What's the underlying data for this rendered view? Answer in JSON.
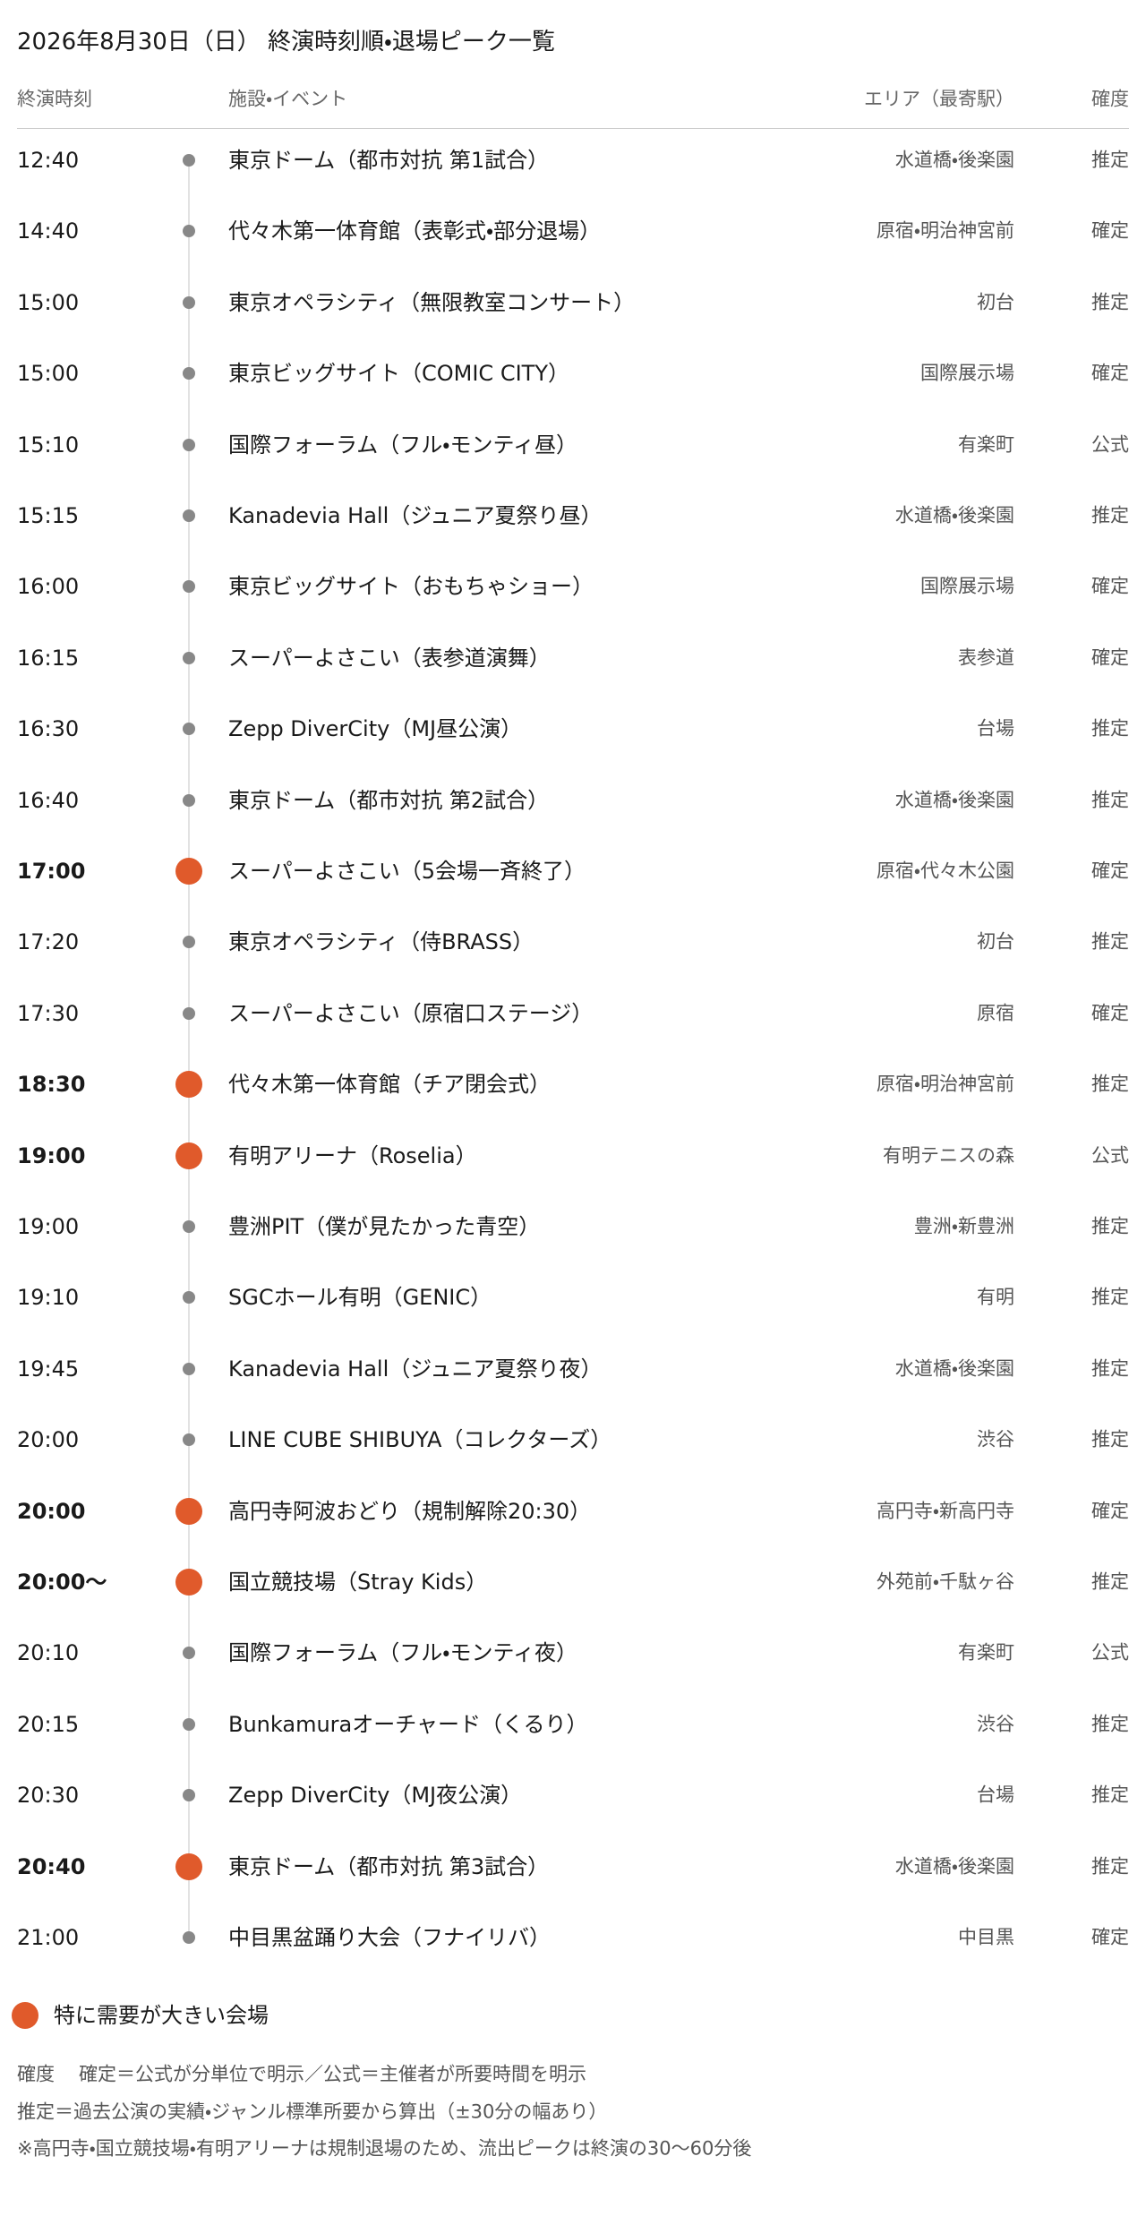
{
  "header": {
    "title": "2026年8月30日（日） 終演時刻順・退場ピーク一覧"
  },
  "columns": {
    "time": "終演時刻",
    "event": "施設・イベント",
    "area": "エリア（最寄駅）",
    "certainty": "確度"
  },
  "rows": [
    {
      "time": "12:40",
      "event": "東京ドーム（都市対抗 第1試合）",
      "area": "水道橋・後楽園",
      "certainty": "推定",
      "major": false
    },
    {
      "time": "14:40",
      "event": "代々木第一体育館（表彰式・部分退場）",
      "area": "原宿・明治神宮前",
      "certainty": "確定",
      "major": false
    },
    {
      "time": "15:00",
      "event": "東京オペラシティ（無限教室コンサート）",
      "area": "初台",
      "certainty": "推定",
      "major": false
    },
    {
      "time": "15:00",
      "event": "東京ビッグサイト（COMIC CITY）",
      "area": "国際展示場",
      "certainty": "確定",
      "major": false
    },
    {
      "time": "15:10",
      "event": "国際フォーラム（フル・モンティ昼）",
      "area": "有楽町",
      "certainty": "公式",
      "major": false
    },
    {
      "time": "15:15",
      "event": "Kanadevia Hall（ジュニア夏祭り昼）",
      "area": "水道橋・後楽園",
      "certainty": "推定",
      "major": false
    },
    {
      "time": "16:00",
      "event": "東京ビッグサイト（おもちゃショー）",
      "area": "国際展示場",
      "certainty": "確定",
      "major": false
    },
    {
      "time": "16:15",
      "event": "スーパーよさこい（表参道演舞）",
      "area": "表参道",
      "certainty": "確定",
      "major": false
    },
    {
      "time": "16:30",
      "event": "Zepp DiverCity（MJ昼公演）",
      "area": "台場",
      "certainty": "推定",
      "major": false
    },
    {
      "time": "16:40",
      "event": "東京ドーム（都市対抗 第2試合）",
      "area": "水道橋・後楽園",
      "certainty": "推定",
      "major": false
    },
    {
      "time": "17:00",
      "event": "スーパーよさこい（5会場一斉終了）",
      "area": "原宿・代々木公園",
      "certainty": "確定",
      "major": true
    },
    {
      "time": "17:20",
      "event": "東京オペラシティ（侍BRASS）",
      "area": "初台",
      "certainty": "推定",
      "major": false
    },
    {
      "time": "17:30",
      "event": "スーパーよさこい（原宿口ステージ）",
      "area": "原宿",
      "certainty": "確定",
      "major": false
    },
    {
      "time": "18:30",
      "event": "代々木第一体育館（チア閉会式）",
      "area": "原宿・明治神宮前",
      "certainty": "推定",
      "major": true
    },
    {
      "time": "19:00",
      "event": "有明アリーナ（Roselia）",
      "area": "有明テニスの森",
      "certainty": "公式",
      "major": true
    },
    {
      "time": "19:00",
      "event": "豊洲PIT（僕が見たかった青空）",
      "area": "豊洲・新豊洲",
      "certainty": "推定",
      "major": false
    },
    {
      "time": "19:10",
      "event": "SGCホール有明（GENIC）",
      "area": "有明",
      "certainty": "推定",
      "major": false
    },
    {
      "time": "19:45",
      "event": "Kanadevia Hall（ジュニア夏祭り夜）",
      "area": "水道橋・後楽園",
      "certainty": "推定",
      "major": false
    },
    {
      "time": "20:00",
      "event": "LINE CUBE SHIBUYA（コレクターズ）",
      "area": "渋谷",
      "certainty": "推定",
      "major": false
    },
    {
      "time": "20:00",
      "event": "高円寺阿波おどり（規制解除20:30）",
      "area": "高円寺・新高円寺",
      "certainty": "確定",
      "major": true
    },
    {
      "time": "20:00〜",
      "event": "国立競技場（Stray Kids）",
      "area": "外苑前・千駄ヶ谷",
      "certainty": "推定",
      "major": true
    },
    {
      "time": "20:10",
      "event": "国際フォーラム（フル・モンティ夜）",
      "area": "有楽町",
      "certainty": "公式",
      "major": false
    },
    {
      "time": "20:15",
      "event": "Bunkamuraオーチャード（くるり）",
      "area": "渋谷",
      "certainty": "推定",
      "major": false
    },
    {
      "time": "20:30",
      "event": "Zepp DiverCity（MJ夜公演）",
      "area": "台場",
      "certainty": "推定",
      "major": false
    },
    {
      "time": "20:40",
      "event": "東京ドーム（都市対抗 第3試合）",
      "area": "水道橋・後楽園",
      "certainty": "推定",
      "major": true
    },
    {
      "time": "21:00",
      "event": "中目黒盆踊り大会（フナイリバ）",
      "area": "中目黒",
      "certainty": "確定",
      "major": false
    }
  ],
  "legend": {
    "label": "特に需要が大きい会場",
    "color": "#e05a2b"
  },
  "notes": {
    "label": "確度",
    "lines": [
      "確定＝公式が分単位で明示／公式＝主催者が所要時間を明示",
      "推定＝過去公演の実績・ジャンル標準所要から算出（±30分の幅あり）",
      "※高円寺・国立競技場・有明アリーナは規制退場のため、流出ピークは終演の30〜60分後"
    ]
  }
}
